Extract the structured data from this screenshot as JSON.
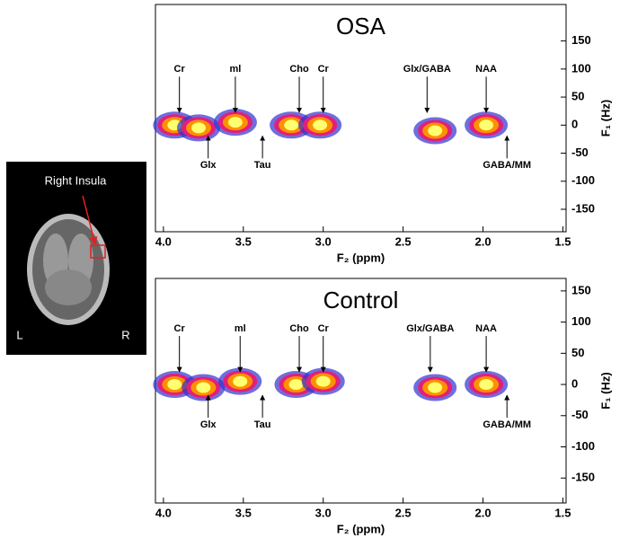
{
  "image": {
    "label": "Right Insula",
    "left": "L",
    "right": "R"
  },
  "colormap": [
    "#3030d0",
    "#e0207a",
    "#ff9000",
    "#ffff70"
  ],
  "chart_data": [
    {
      "type": "spectrum2d",
      "title": "OSA",
      "xlabel": "F₂ (ppm)",
      "ylabel": "F₁ (Hz)",
      "xlim": [
        4.05,
        1.48
      ],
      "ylim": [
        -190,
        215
      ],
      "xticks": [
        {
          "value": 4,
          "label": "4.0"
        },
        3.5,
        {
          "value": 3,
          "label": "3.0"
        },
        2.5,
        {
          "value": 2,
          "label": "2.0"
        },
        1.5
      ],
      "yticks": [
        150,
        100,
        50,
        0,
        -50,
        -100,
        -150
      ],
      "peaks": {
        "x": [
          3.93,
          3.78,
          3.55,
          3.2,
          3.02,
          2.3,
          1.98
        ],
        "y": [
          0,
          -5,
          5,
          0,
          0,
          -10,
          0
        ]
      },
      "annotations": [
        {
          "text": "Cr",
          "x": 3.9,
          "position": "above"
        },
        {
          "text": "Glx",
          "x": 3.72,
          "position": "below"
        },
        {
          "text": "ml",
          "x": 3.55,
          "position": "above"
        },
        {
          "text": "Tau",
          "x": 3.38,
          "position": "below"
        },
        {
          "text": "Cho",
          "x": 3.15,
          "position": "above"
        },
        {
          "text": "Cr",
          "x": 3.0,
          "position": "above"
        },
        {
          "text": "Glx/GABA",
          "x": 2.35,
          "position": "above"
        },
        {
          "text": "NAA",
          "x": 1.98,
          "position": "above"
        },
        {
          "text": "GABA/MM",
          "x": 1.85,
          "position": "below"
        }
      ]
    },
    {
      "type": "spectrum2d",
      "title": "Control",
      "xlabel": "F₂ (ppm)",
      "ylabel": "F₁ (Hz)",
      "xlim": [
        4.05,
        1.48
      ],
      "ylim": [
        -190,
        170
      ],
      "xticks": [
        {
          "value": 4,
          "label": "4.0"
        },
        3.5,
        {
          "value": 3,
          "label": "3.0"
        },
        2.5,
        {
          "value": 2,
          "label": "2.0"
        },
        1.5
      ],
      "yticks": [
        150,
        100,
        50,
        0,
        -50,
        -100,
        -150
      ],
      "peaks": {
        "x": [
          3.93,
          3.75,
          3.52,
          3.17,
          3.0,
          2.3,
          1.98
        ],
        "y": [
          0,
          -5,
          5,
          0,
          5,
          -5,
          0
        ]
      },
      "annotations": [
        {
          "text": "Cr",
          "x": 3.9,
          "position": "above"
        },
        {
          "text": "Glx",
          "x": 3.72,
          "position": "below"
        },
        {
          "text": "ml",
          "x": 3.52,
          "position": "above"
        },
        {
          "text": "Tau",
          "x": 3.38,
          "position": "below"
        },
        {
          "text": "Cho",
          "x": 3.15,
          "position": "above"
        },
        {
          "text": "Cr",
          "x": 3.0,
          "position": "above"
        },
        {
          "text": "Glx/GABA",
          "x": 2.33,
          "position": "above"
        },
        {
          "text": "NAA",
          "x": 1.98,
          "position": "above"
        },
        {
          "text": "GABA/MM",
          "x": 1.85,
          "position": "below"
        }
      ]
    }
  ]
}
